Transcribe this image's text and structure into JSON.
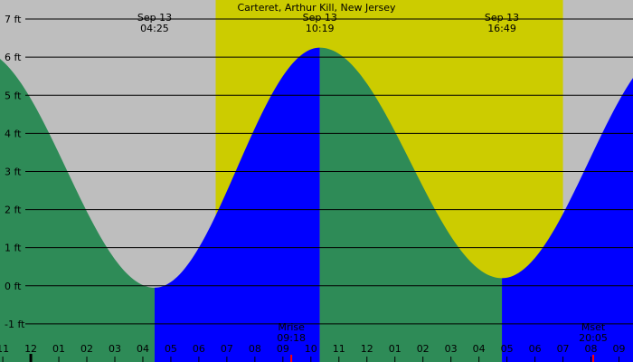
{
  "chart_data": {
    "type": "area",
    "title": "Carteret, Arthur Kill, New Jersey",
    "xlabel": "",
    "ylabel": "",
    "y_unit": "ft",
    "ylim": [
      -2,
      7.5
    ],
    "y_ticks": [
      -1,
      0,
      1,
      2,
      3,
      4,
      5,
      6,
      7
    ],
    "y_tick_labels": [
      "-1 ft",
      "0 ft",
      "1 ft",
      "2 ft",
      "3 ft",
      "4 ft",
      "5 ft",
      "6 ft",
      "7 ft"
    ],
    "x_range_hours": [
      -1.1,
      21.5
    ],
    "x_ticks": [
      {
        "label": "11",
        "hour": -1
      },
      {
        "label": "12",
        "hour": 0
      },
      {
        "label": "01",
        "hour": 1
      },
      {
        "label": "02",
        "hour": 2
      },
      {
        "label": "03",
        "hour": 3
      },
      {
        "label": "04",
        "hour": 4
      },
      {
        "label": "05",
        "hour": 5
      },
      {
        "label": "06",
        "hour": 6
      },
      {
        "label": "07",
        "hour": 7
      },
      {
        "label": "08",
        "hour": 8
      },
      {
        "label": "09",
        "hour": 9
      },
      {
        "label": "10",
        "hour": 10
      },
      {
        "label": "11",
        "hour": 11
      },
      {
        "label": "12",
        "hour": 12
      },
      {
        "label": "01",
        "hour": 13
      },
      {
        "label": "02",
        "hour": 14
      },
      {
        "label": "03",
        "hour": 15
      },
      {
        "label": "04",
        "hour": 16
      },
      {
        "label": "05",
        "hour": 17
      },
      {
        "label": "06",
        "hour": 18
      },
      {
        "label": "07",
        "hour": 19
      },
      {
        "label": "08",
        "hour": 20
      },
      {
        "label": "09",
        "hour": 21
      }
    ],
    "daylight": {
      "start_hour": 6.6,
      "end_hour": 19.0
    },
    "tides": [
      {
        "hour": -1.9,
        "height": 6.2,
        "type": "high",
        "shown": false
      },
      {
        "hour": 4.42,
        "height": -0.05,
        "type": "low",
        "date": "Sep 13",
        "time": "04:25"
      },
      {
        "hour": 10.32,
        "height": 6.25,
        "type": "high",
        "date": "Sep 13",
        "time": "10:19"
      },
      {
        "hour": 16.82,
        "height": 0.2,
        "type": "low",
        "date": "Sep 13",
        "time": "16:49"
      },
      {
        "hour": 23.0,
        "height": 6.3,
        "type": "high",
        "shown": false
      }
    ],
    "moon_events": [
      {
        "label": "Mrise",
        "time": "09:18",
        "hour": 9.3
      },
      {
        "label": "Mset",
        "time": "20:05",
        "hour": 20.08
      }
    ],
    "colors": {
      "night": "#bebebe",
      "day": "#cccc00",
      "falling": "#2e8b57",
      "rising": "#0000ff",
      "grid": "#000000",
      "moon_tick": "#ff0000",
      "midnight_tick": "#000000"
    }
  }
}
